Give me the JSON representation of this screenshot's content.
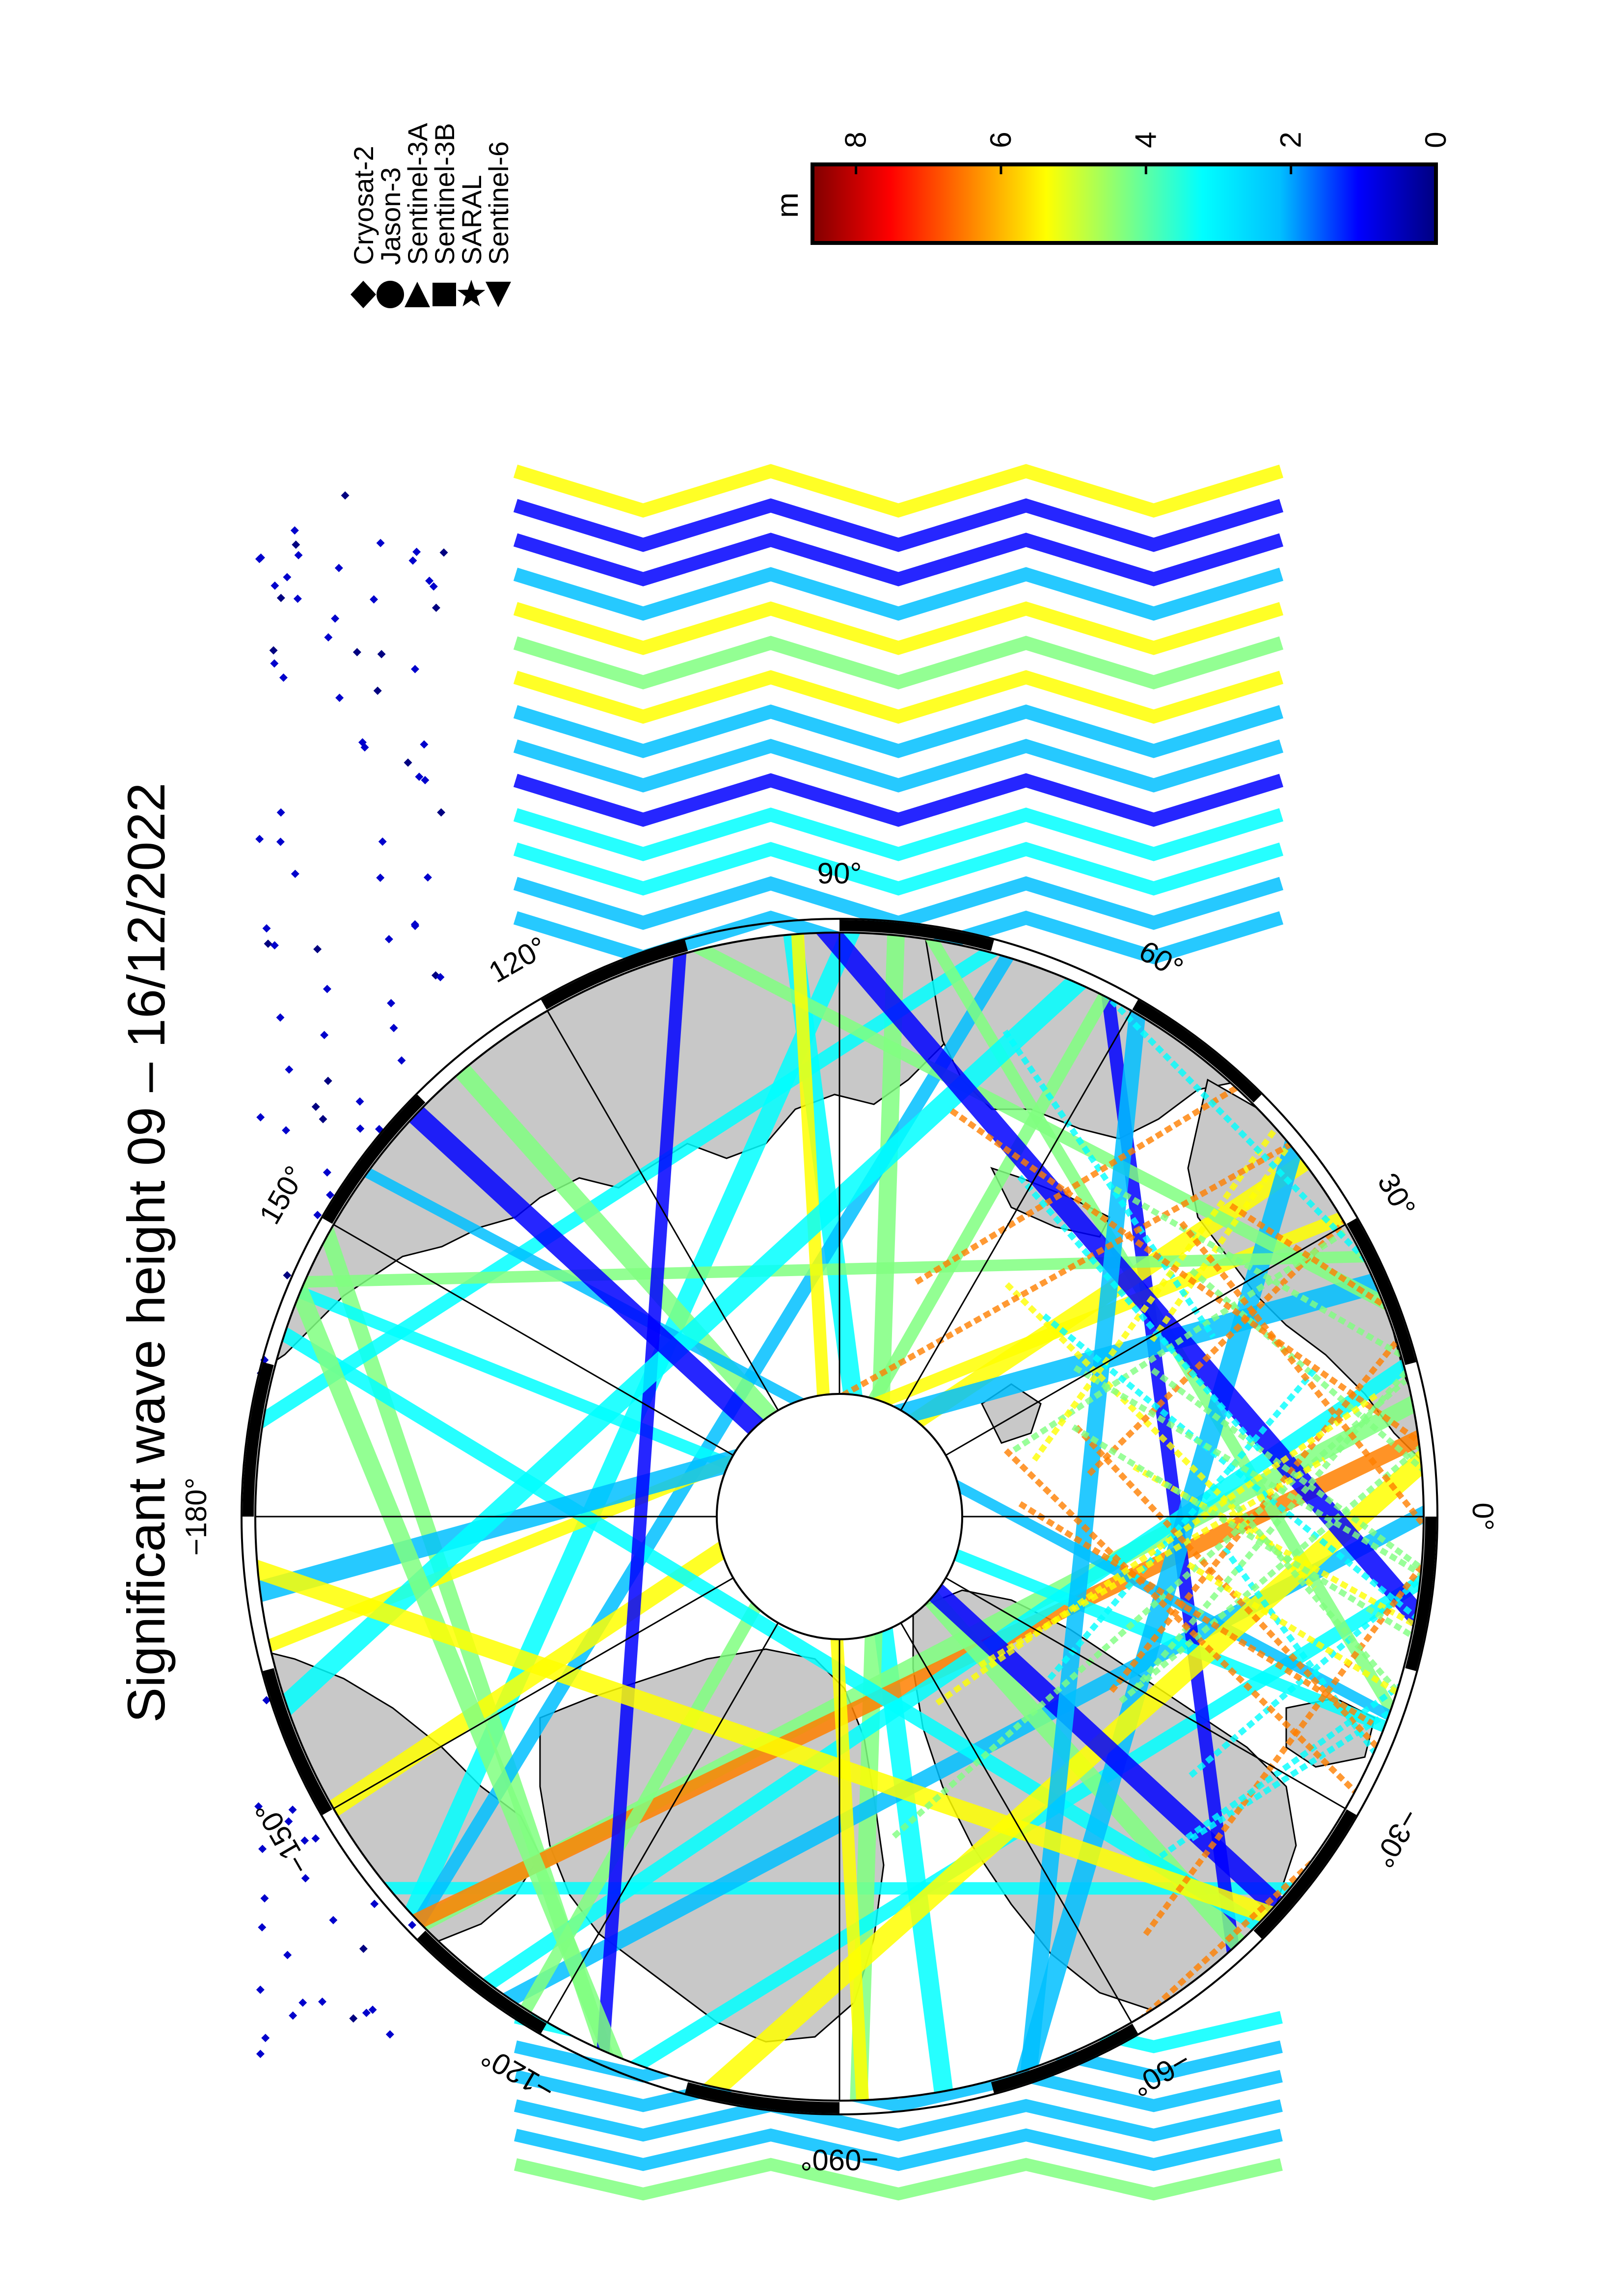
{
  "title": "Significant wave height 09 – 16/12/2022",
  "legend": {
    "satellites": [
      {
        "name": "Cryosat-2",
        "marker": "diamond"
      },
      {
        "name": "Jason-3",
        "marker": "circle"
      },
      {
        "name": "Sentinel-3A",
        "marker": "triangle-left"
      },
      {
        "name": "Sentinel-3B",
        "marker": "square"
      },
      {
        "name": "SARAL",
        "marker": "star"
      },
      {
        "name": "Sentinel-6",
        "marker": "triangle-right"
      }
    ]
  },
  "colorbar": {
    "unit": "m",
    "min": 0,
    "max": 8.6,
    "ticks": [
      "0",
      "2",
      "4",
      "6",
      "8"
    ],
    "colormap": "jet-reversed",
    "colors": [
      "#000080",
      "#0000ff",
      "#00bfff",
      "#00ffff",
      "#80ff80",
      "#ffff00",
      "#ff8000",
      "#ff0000",
      "#800000"
    ]
  },
  "map": {
    "projection": "north-polar-stereographic",
    "longitude_labels": [
      "0°",
      "30°",
      "60°",
      "90°",
      "120°",
      "150°",
      "−180°",
      "−150°",
      "−120°",
      "−090°",
      "−60°",
      "−30°"
    ],
    "land_color": "#c8c8c8",
    "ocean_color": "#ffffff",
    "frame": "black-and-white alternating border",
    "pole_hole": true
  }
}
